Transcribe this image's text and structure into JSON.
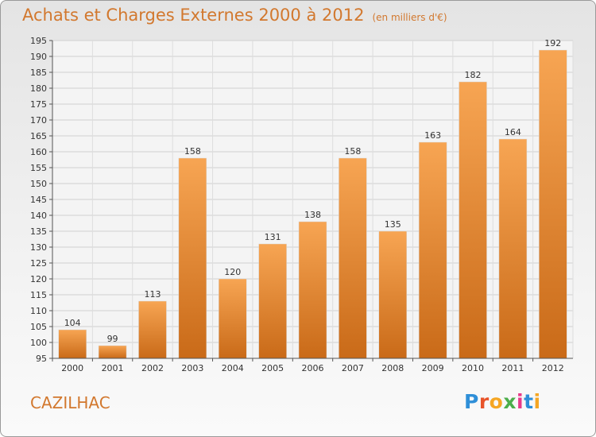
{
  "chart_data": {
    "type": "bar",
    "title": "Achats et Charges Externes 2000 à 2012",
    "subtitle": "(en milliers d'€)",
    "categories": [
      "2000",
      "2001",
      "2002",
      "2003",
      "2004",
      "2005",
      "2006",
      "2007",
      "2008",
      "2009",
      "2010",
      "2011",
      "2012"
    ],
    "values": [
      104,
      99,
      113,
      158,
      120,
      131,
      138,
      158,
      135,
      163,
      182,
      164,
      192
    ],
    "ylim": [
      95,
      195
    ],
    "yticks": [
      95,
      100,
      105,
      110,
      115,
      120,
      125,
      130,
      135,
      140,
      145,
      150,
      155,
      160,
      165,
      170,
      175,
      180,
      185,
      190,
      195
    ],
    "grid": true,
    "bar_color": "#f0963e"
  },
  "footer": {
    "town": "CAZILHAC",
    "logo_letters": [
      "P",
      "r",
      "o",
      "x",
      "i",
      "t",
      "i"
    ],
    "logo_colors": [
      "#2f8fd8",
      "#e8542a",
      "#f5a623",
      "#4cae4c",
      "#e83a8a",
      "#2f8fd8",
      "#f5a623"
    ]
  }
}
